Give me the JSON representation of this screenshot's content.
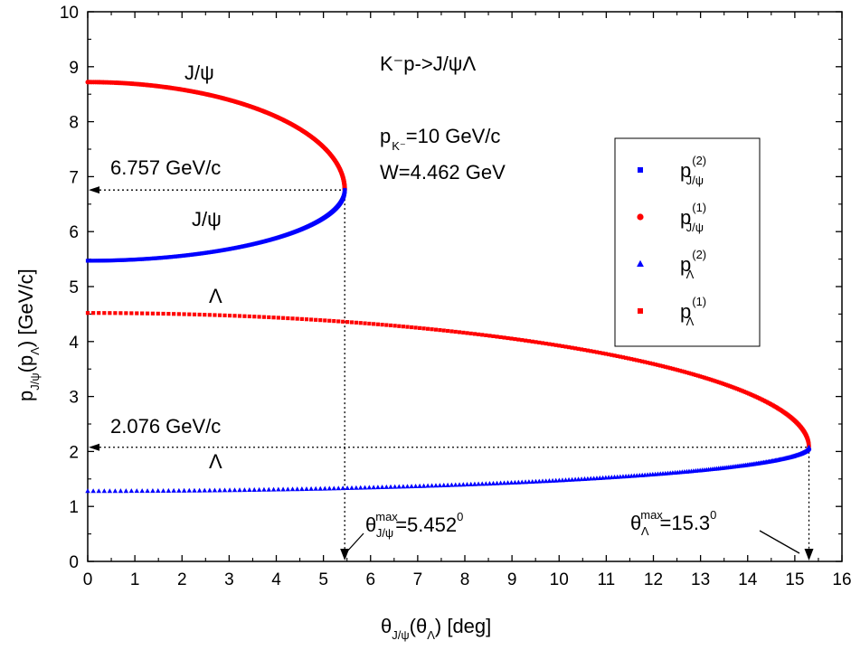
{
  "chart_data": {
    "type": "scatter",
    "xlim": [
      0,
      16
    ],
    "ylim": [
      0,
      10
    ],
    "xticks": [
      0,
      1,
      2,
      3,
      4,
      5,
      6,
      7,
      8,
      9,
      10,
      11,
      12,
      13,
      14,
      15,
      16
    ],
    "yticks": [
      0,
      1,
      2,
      3,
      4,
      5,
      6,
      7,
      8,
      9,
      10
    ],
    "xlabel": {
      "main": "θ",
      "sub1": "J/ψ",
      "mid": "(θ",
      "sub2": "Λ",
      "tail": ") [deg]"
    },
    "ylabel": {
      "main": "p",
      "sub1": "J/ψ",
      "mid": "(p",
      "sub2": "Λ",
      "tail": ") [GeV/c]"
    },
    "grid": false,
    "legend_position": "right",
    "series": [
      {
        "name": "p^(2)_J/ψ",
        "color": "#0000ff",
        "marker": "square",
        "branch": "lower",
        "theta_max": 5.452,
        "p_at_zero": 5.47,
        "p_at_max": 6.757
      },
      {
        "name": "p^(1)_J/ψ",
        "color": "#ff0000",
        "marker": "circle",
        "branch": "upper",
        "theta_max": 5.452,
        "p_at_zero": 8.72,
        "p_at_max": 6.757
      },
      {
        "name": "p^(2)_Λ",
        "color": "#0000ff",
        "marker": "triangle",
        "branch": "lower",
        "theta_max": 15.3,
        "p_at_zero": 1.28,
        "p_at_max": 2.076
      },
      {
        "name": "p^(1)_Λ",
        "color": "#ff0000",
        "marker": "square",
        "branch": "upper",
        "theta_max": 15.3,
        "p_at_zero": 4.52,
        "p_at_max": 2.076
      }
    ],
    "annotations": {
      "reaction": "K⁻p->J/ψΛ",
      "pk": "=10 GeV/c",
      "w": "W=4.462 GeV",
      "jpsi_upper": "J/ψ",
      "jpsi_lower": "J/ψ",
      "lambda_upper": "Λ",
      "lambda_lower": "Λ",
      "pmax_jpsi": "6.757 GeV/c",
      "pmax_lambda": "2.076 GeV/c",
      "theta_max_jpsi": "=5.452",
      "theta_max_lambda": "=15.3",
      "max_label": "max",
      "degree_mark": "0"
    },
    "legend": [
      {
        "base": "p",
        "sup": "(2)",
        "sub": "J/ψ"
      },
      {
        "base": "p",
        "sup": "(1)",
        "sub": "J/ψ"
      },
      {
        "base": "p",
        "sup": "(2)",
        "sub": "Λ"
      },
      {
        "base": "p",
        "sup": "(1)",
        "sub": "Λ"
      }
    ]
  }
}
